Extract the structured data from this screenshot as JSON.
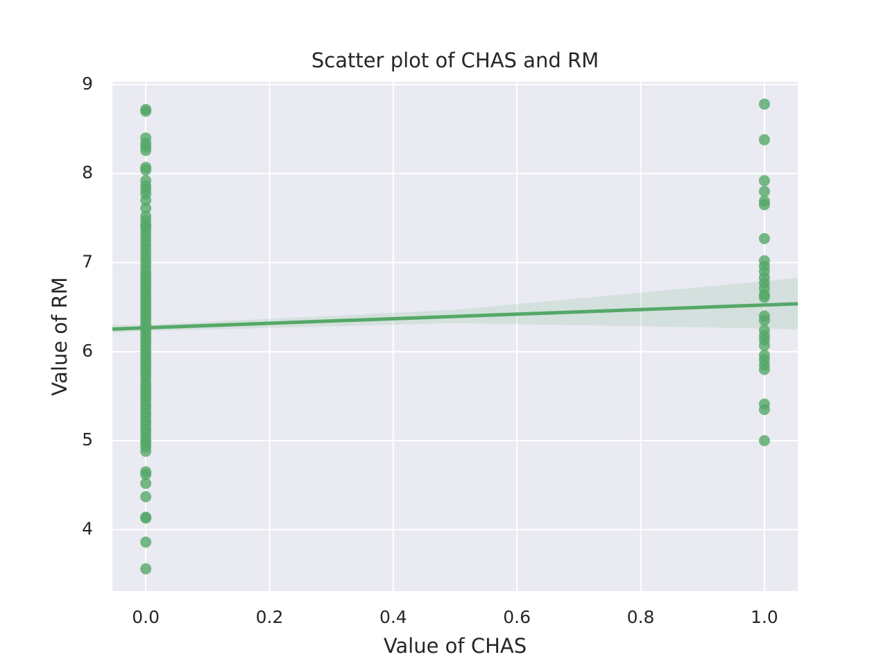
{
  "chart_data": {
    "type": "scatter",
    "title": "Scatter plot of CHAS and RM",
    "x_label": "Value of CHAS",
    "y_label": "Value of RM",
    "color": "#55a868",
    "background": "#eaeaf2",
    "grid": true,
    "xlim": [
      -0.054,
      1.054
    ],
    "ylim": [
      3.31,
      9.03
    ],
    "xticks": [
      {
        "value": 0,
        "label": "0.0"
      },
      0.2,
      0.4,
      0.6,
      0.8,
      {
        "value": 1,
        "label": "1.0"
      }
    ],
    "yticks": [
      4,
      5,
      6,
      7,
      8,
      9
    ],
    "x": [
      0,
      0,
      0,
      0,
      0,
      0,
      0,
      0,
      0,
      0,
      0,
      0,
      0,
      0,
      0,
      0,
      0,
      0,
      0,
      0,
      0,
      0,
      0,
      0,
      0,
      0,
      0,
      0,
      0,
      0,
      0,
      0,
      0,
      0,
      0,
      0,
      0,
      0,
      0,
      0,
      0,
      0,
      0,
      0,
      0,
      0,
      0,
      0,
      0,
      0,
      0,
      0,
      0,
      0,
      0,
      0,
      0,
      0,
      0,
      0,
      0,
      0,
      0,
      0,
      0,
      0,
      0,
      0,
      0,
      0,
      0,
      0,
      0,
      0,
      0,
      0,
      0,
      0,
      0,
      0,
      0,
      0,
      0,
      0,
      0,
      1,
      1,
      1,
      1,
      1,
      1,
      1,
      1,
      1,
      1,
      1,
      1,
      1,
      1,
      1,
      1,
      1,
      1,
      1,
      1,
      1,
      1,
      1,
      1,
      1,
      1,
      1,
      1
    ],
    "values": [
      8.72,
      8.7,
      8.4,
      8.34,
      8.3,
      8.26,
      8.07,
      8.04,
      7.92,
      7.86,
      7.82,
      7.77,
      7.7,
      7.61,
      7.52,
      7.47,
      7.42,
      4.88,
      4.93,
      4.97,
      5.0,
      5.04,
      5.09,
      5.13,
      5.18,
      5.22,
      5.27,
      5.31,
      5.36,
      5.4,
      5.45,
      5.49,
      5.53,
      5.57,
      5.61,
      5.65,
      5.7,
      5.74,
      5.78,
      5.82,
      5.86,
      5.9,
      5.94,
      5.98,
      6.02,
      6.06,
      6.1,
      6.14,
      6.18,
      6.22,
      6.26,
      6.3,
      6.34,
      6.38,
      6.42,
      6.46,
      6.5,
      6.54,
      6.58,
      6.62,
      6.66,
      6.7,
      6.74,
      6.78,
      6.82,
      6.86,
      6.9,
      6.95,
      7.0,
      7.05,
      7.1,
      7.15,
      7.2,
      7.25,
      7.3,
      7.35,
      7.4,
      4.65,
      4.62,
      4.52,
      4.37,
      4.14,
      4.13,
      3.86,
      3.56,
      8.78,
      8.38,
      7.92,
      7.8,
      7.69,
      7.65,
      7.27,
      7.02,
      6.96,
      6.9,
      6.83,
      6.77,
      6.71,
      6.64,
      6.61,
      6.4,
      6.35,
      6.24,
      6.18,
      6.13,
      6.07,
      5.96,
      5.91,
      5.85,
      5.8,
      5.41,
      5.35,
      5.0
    ],
    "regression": {
      "x": [
        -0.054,
        0,
        0.5,
        1,
        1.054
      ],
      "values": [
        6.253,
        6.267,
        6.395,
        6.524,
        6.537
      ],
      "ci_lower": [
        6.21,
        6.23,
        6.32,
        6.26,
        6.25
      ],
      "ci_upper": [
        6.3,
        6.3,
        6.47,
        6.79,
        6.83
      ]
    }
  }
}
